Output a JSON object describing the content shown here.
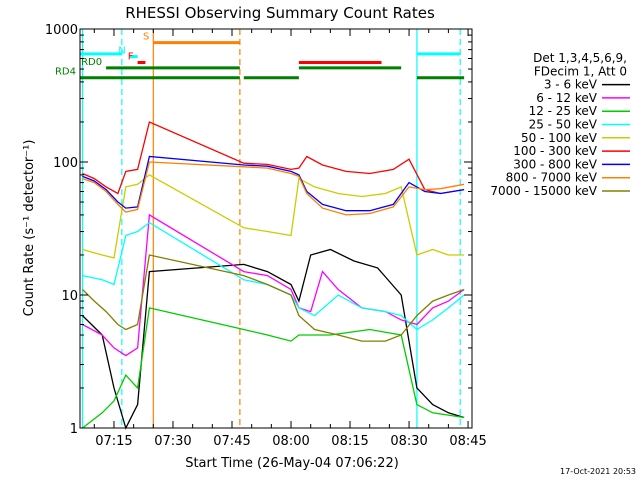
{
  "chart_data": {
    "type": "line",
    "title": "RHESSI Observing Summary Count Rates",
    "xlabel": "Start Time (26-May-04 07:06:22)",
    "ylabel": "Count Rate (s⁻¹ detector⁻¹)",
    "y_scale": "log",
    "ylim": [
      1,
      1000
    ],
    "xlim": [
      "07:06:22",
      "08:46:00"
    ],
    "x_ticks": [
      "07:15",
      "07:30",
      "07:45",
      "08:00",
      "08:15",
      "08:30",
      "08:45"
    ],
    "y_ticks": [
      "1",
      "10",
      "100",
      "1000"
    ],
    "legend_title_lines": [
      "Det 1,3,4,5,6,9,",
      "FDecim 1, Att 0"
    ],
    "legend_position": "right",
    "timestamp": "17-Oct-2021 20:53",
    "series": [
      {
        "name": "3 - 6 keV",
        "color": "#000000",
        "x": [
          "07:07",
          "07:12",
          "07:15",
          "07:18",
          "07:21",
          "07:24",
          "07:48",
          "07:54",
          "08:00",
          "08:02",
          "08:05",
          "08:10",
          "08:16",
          "08:22",
          "08:28",
          "08:32",
          "08:36",
          "08:40",
          "08:44"
        ],
        "y": [
          7,
          5,
          2,
          1,
          1.5,
          15,
          17,
          15,
          12,
          9,
          20,
          22,
          18,
          16,
          10,
          2,
          1.5,
          1.3,
          1.2
        ]
      },
      {
        "name": "6 - 12 keV",
        "color": "#ff00ff",
        "x": [
          "07:07",
          "07:12",
          "07:15",
          "07:18",
          "07:21",
          "07:24",
          "07:48",
          "07:54",
          "08:00",
          "08:02",
          "08:05",
          "08:08",
          "08:12",
          "08:18",
          "08:24",
          "08:28",
          "08:32",
          "08:36",
          "08:40",
          "08:44"
        ],
        "y": [
          6,
          5,
          4,
          3.5,
          4,
          40,
          15,
          14,
          11,
          8,
          7.5,
          15,
          11,
          8,
          7.5,
          6.5,
          6,
          8,
          9,
          11
        ]
      },
      {
        "name": "12 - 25 keV",
        "color": "#00cc00",
        "x": [
          "07:07",
          "07:12",
          "07:15",
          "07:18",
          "07:21",
          "07:24",
          "07:48",
          "07:54",
          "08:00",
          "08:02",
          "08:10",
          "08:20",
          "08:28",
          "08:32",
          "08:36",
          "08:44"
        ],
        "y": [
          1,
          1.3,
          1.6,
          2.5,
          2,
          8,
          5.5,
          5,
          4.5,
          5,
          5,
          5.5,
          5,
          1.5,
          1.3,
          1.2
        ]
      },
      {
        "name": "25 - 50 keV",
        "color": "#00ffff",
        "x": [
          "07:07",
          "07:12",
          "07:15",
          "07:18",
          "07:21",
          "07:24",
          "07:48",
          "07:54",
          "08:00",
          "08:02",
          "08:06",
          "08:12",
          "08:18",
          "08:24",
          "08:28",
          "08:32",
          "08:36",
          "08:40",
          "08:44"
        ],
        "y": [
          14,
          13,
          12,
          28,
          30,
          35,
          13,
          12,
          10,
          8,
          7,
          10,
          8,
          7.5,
          7,
          5.5,
          6.5,
          8,
          10
        ]
      },
      {
        "name": "50 - 100 keV",
        "color": "#cccc00",
        "x": [
          "07:07",
          "07:12",
          "07:15",
          "07:18",
          "07:21",
          "07:24",
          "07:48",
          "07:54",
          "08:00",
          "08:02",
          "08:06",
          "08:12",
          "08:18",
          "08:24",
          "08:28",
          "08:32",
          "08:36",
          "08:40",
          "08:44"
        ],
        "y": [
          22,
          20,
          19,
          65,
          68,
          80,
          32,
          30,
          28,
          75,
          65,
          58,
          55,
          58,
          65,
          20,
          22,
          20,
          20
        ]
      },
      {
        "name": "100 - 300 keV",
        "color": "#ff0000",
        "x": [
          "07:07",
          "07:10",
          "07:13",
          "07:16",
          "07:18",
          "07:21",
          "07:24",
          "07:48",
          "07:54",
          "08:00",
          "08:02",
          "08:04",
          "08:08",
          "08:14",
          "08:20",
          "08:26",
          "08:30",
          "08:34",
          "08:38",
          "08:44"
        ],
        "y": [
          82,
          75,
          65,
          58,
          85,
          88,
          200,
          98,
          96,
          88,
          90,
          110,
          95,
          85,
          82,
          88,
          105,
          62,
          58,
          62
        ]
      },
      {
        "name": "300 - 800 keV",
        "color": "#0000ff",
        "x": [
          "07:07",
          "07:10",
          "07:13",
          "07:16",
          "07:18",
          "07:21",
          "07:24",
          "07:48",
          "07:54",
          "08:00",
          "08:02",
          "08:04",
          "08:08",
          "08:14",
          "08:20",
          "08:26",
          "08:30",
          "08:34",
          "08:38",
          "08:44"
        ],
        "y": [
          78,
          72,
          62,
          50,
          45,
          46,
          110,
          95,
          93,
          85,
          80,
          60,
          48,
          43,
          43,
          48,
          70,
          60,
          58,
          62
        ]
      },
      {
        "name": "800 - 7000 keV",
        "color": "#ff8000",
        "x": [
          "07:07",
          "07:10",
          "07:13",
          "07:16",
          "07:18",
          "07:21",
          "07:24",
          "07:48",
          "07:54",
          "08:00",
          "08:02",
          "08:04",
          "08:08",
          "08:14",
          "08:20",
          "08:26",
          "08:30",
          "08:34",
          "08:38",
          "08:44"
        ],
        "y": [
          75,
          70,
          60,
          48,
          42,
          44,
          100,
          92,
          90,
          82,
          78,
          58,
          45,
          40,
          41,
          46,
          65,
          62,
          63,
          68
        ]
      },
      {
        "name": "7000 - 15000 keV",
        "color": "#808000",
        "x": [
          "07:07",
          "07:10",
          "07:13",
          "07:16",
          "07:18",
          "07:21",
          "07:24",
          "07:48",
          "07:54",
          "08:00",
          "08:02",
          "08:06",
          "08:12",
          "08:18",
          "08:24",
          "08:28",
          "08:32",
          "08:36",
          "08:40",
          "08:44"
        ],
        "y": [
          11,
          9,
          7.5,
          6,
          5.5,
          6,
          20,
          14,
          12,
          10,
          7,
          5.5,
          5,
          4.5,
          4.5,
          5,
          7,
          9,
          10,
          11
        ]
      }
    ],
    "vertical_lines": [
      {
        "x": "07:07",
        "color": "#00ffff",
        "style": "solid"
      },
      {
        "x": "07:17",
        "color": "#00ffff",
        "style": "dashed"
      },
      {
        "x": "07:25",
        "color": "#ff8000",
        "style": "solid"
      },
      {
        "x": "07:47",
        "color": "#ff8000",
        "style": "dashed"
      },
      {
        "x": "08:32",
        "color": "#00ffff",
        "style": "solid"
      },
      {
        "x": "08:43",
        "color": "#00ffff",
        "style": "dashed"
      }
    ],
    "flag_bars": [
      {
        "label": "",
        "color": "#00ffff",
        "y": 650,
        "segments": [
          [
            "07:06:22",
            "07:17"
          ],
          [
            "08:32",
            "08:43"
          ]
        ]
      },
      {
        "label": "S",
        "color": "#ff8000",
        "y": 790,
        "segments": [
          [
            "07:25",
            "07:47"
          ]
        ]
      },
      {
        "label": "N",
        "color": "#00ffff",
        "y": 620,
        "segments": [
          [
            "07:19",
            "07:21"
          ]
        ]
      },
      {
        "label": "F",
        "color": "#ff0000",
        "y": 560,
        "segments": [
          [
            "07:21",
            "07:23"
          ],
          [
            "08:02",
            "08:23"
          ]
        ]
      },
      {
        "label": "RD0",
        "color": "#008000",
        "y": 510,
        "segments": [
          [
            "07:13",
            "07:47"
          ],
          [
            "08:02",
            "08:28"
          ]
        ]
      },
      {
        "label": "RD4",
        "color": "#008000",
        "y": 430,
        "segments": [
          [
            "07:06:22",
            "07:47"
          ],
          [
            "07:48",
            "08:02"
          ],
          [
            "08:32",
            "08:44"
          ]
        ]
      }
    ]
  }
}
